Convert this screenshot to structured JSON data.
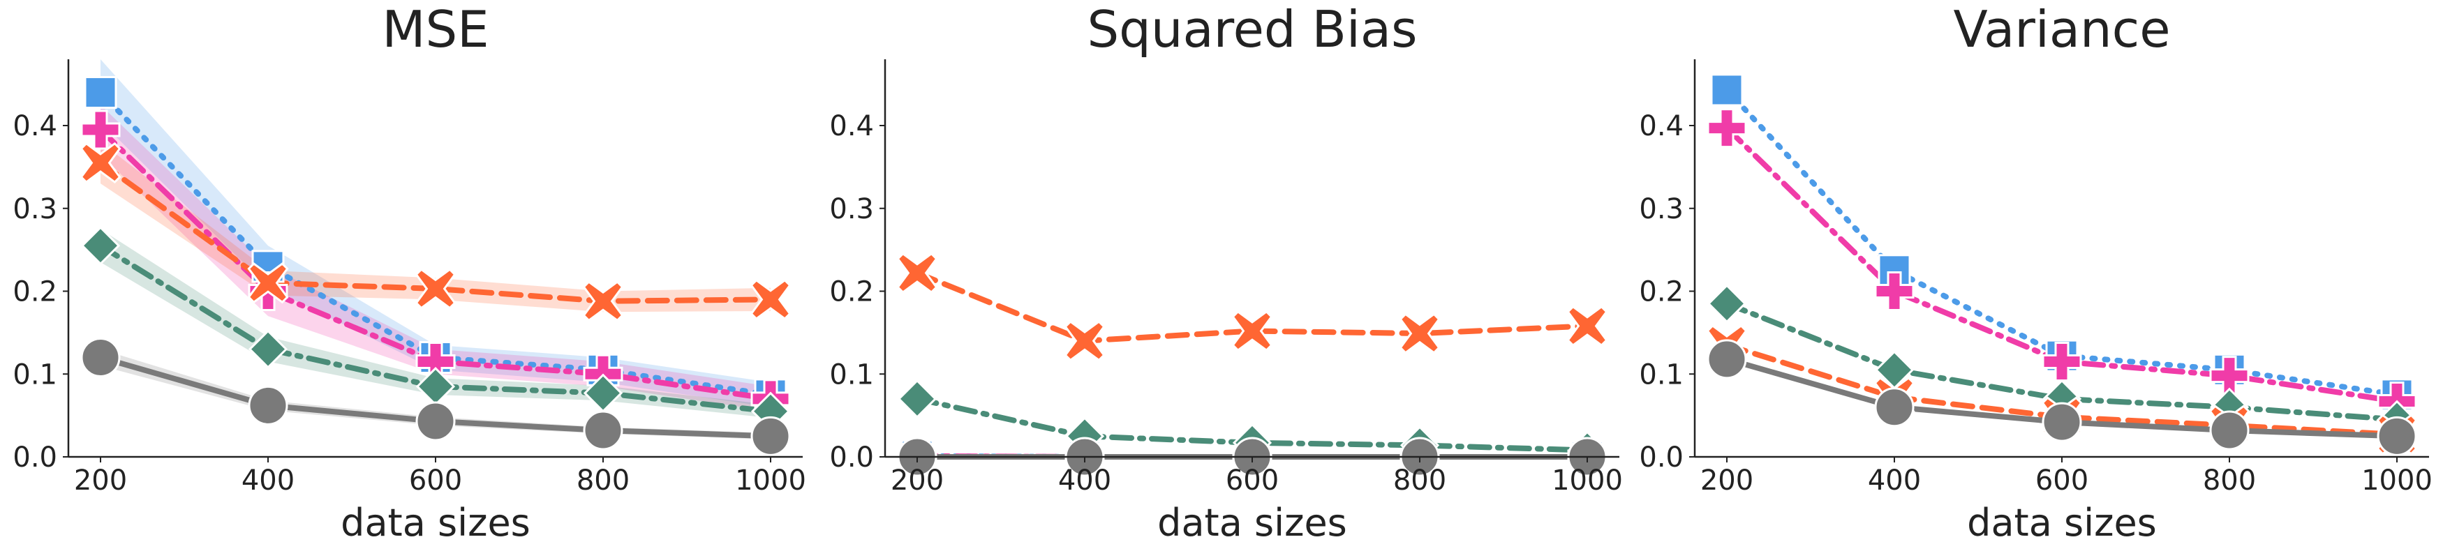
{
  "chart_data": [
    {
      "type": "line",
      "title": "MSE",
      "xlabel": "data sizes",
      "ylabel": "",
      "x": [
        200,
        400,
        600,
        800,
        1000
      ],
      "xticks": [
        "200",
        "400",
        "600",
        "800",
        "1000"
      ],
      "yticks": [
        "0.0",
        "0.1",
        "0.2",
        "0.3",
        "0.4"
      ],
      "ylim": [
        0,
        0.48
      ],
      "grid": false,
      "series": [
        {
          "color": "#4C9BE8",
          "marker": "square",
          "dash": "dotted",
          "values": [
            0.44,
            0.23,
            0.12,
            0.105,
            0.075
          ],
          "band": [
            [
              0.405,
              0.48
            ],
            [
              0.205,
              0.255
            ],
            [
              0.105,
              0.135
            ],
            [
              0.09,
              0.12
            ],
            [
              0.06,
              0.09
            ]
          ]
        },
        {
          "color": "#F03CA8",
          "marker": "plus",
          "dash": "dashdot",
          "values": [
            0.395,
            0.2,
            0.115,
            0.1,
            0.07
          ],
          "band": [
            [
              0.365,
              0.425
            ],
            [
              0.17,
              0.23
            ],
            [
              0.1,
              0.13
            ],
            [
              0.085,
              0.115
            ],
            [
              0.055,
              0.085
            ]
          ]
        },
        {
          "color": "#FF6633",
          "marker": "x",
          "dash": "dashed",
          "values": [
            0.355,
            0.21,
            0.203,
            0.188,
            0.19
          ],
          "band": [
            [
              0.33,
              0.38
            ],
            [
              0.195,
              0.225
            ],
            [
              0.19,
              0.216
            ],
            [
              0.175,
              0.2
            ],
            [
              0.176,
              0.204
            ]
          ]
        },
        {
          "color": "#4A8C78",
          "marker": "diamond",
          "dash": "dashdot",
          "values": [
            0.255,
            0.13,
            0.085,
            0.077,
            0.055
          ],
          "band": [
            [
              0.235,
              0.275
            ],
            [
              0.115,
              0.145
            ],
            [
              0.075,
              0.095
            ],
            [
              0.068,
              0.086
            ],
            [
              0.047,
              0.063
            ]
          ]
        },
        {
          "color": "#7A7A7A",
          "marker": "circle",
          "dash": "solid",
          "values": [
            0.12,
            0.062,
            0.043,
            0.032,
            0.025
          ],
          "band": [
            [
              0.11,
              0.13
            ],
            [
              0.056,
              0.068
            ],
            [
              0.038,
              0.048
            ],
            [
              0.028,
              0.036
            ],
            [
              0.021,
              0.029
            ]
          ]
        }
      ]
    },
    {
      "type": "line",
      "title": "Squared Bias",
      "xlabel": "data sizes",
      "ylabel": "",
      "x": [
        200,
        400,
        600,
        800,
        1000
      ],
      "xticks": [
        "200",
        "400",
        "600",
        "800",
        "1000"
      ],
      "yticks": [
        "0.0",
        "0.1",
        "0.2",
        "0.3",
        "0.4"
      ],
      "ylim": [
        0,
        0.48
      ],
      "grid": false,
      "series": [
        {
          "color": "#4C9BE8",
          "marker": "square",
          "dash": "dotted",
          "values": [
            0.001,
            0.0,
            0.0,
            0.0,
            0.0
          ]
        },
        {
          "color": "#F03CA8",
          "marker": "plus",
          "dash": "dashdot",
          "values": [
            0.001,
            0.0,
            0.0,
            0.0,
            0.0
          ]
        },
        {
          "color": "#FF6633",
          "marker": "x",
          "dash": "dashed",
          "values": [
            0.222,
            0.14,
            0.152,
            0.149,
            0.158
          ]
        },
        {
          "color": "#4A8C78",
          "marker": "diamond",
          "dash": "dashdot",
          "values": [
            0.07,
            0.025,
            0.017,
            0.014,
            0.008
          ]
        },
        {
          "color": "#7A7A7A",
          "marker": "circle",
          "dash": "solid",
          "values": [
            0.0,
            0.0,
            0.0,
            0.0,
            0.0
          ]
        }
      ]
    },
    {
      "type": "line",
      "title": "Variance",
      "xlabel": "data sizes",
      "ylabel": "",
      "x": [
        200,
        400,
        600,
        800,
        1000
      ],
      "xticks": [
        "200",
        "400",
        "600",
        "800",
        "1000"
      ],
      "yticks": [
        "0.0",
        "0.1",
        "0.2",
        "0.3",
        "0.4"
      ],
      "ylim": [
        0,
        0.48
      ],
      "grid": false,
      "series": [
        {
          "color": "#4C9BE8",
          "marker": "square",
          "dash": "dotted",
          "values": [
            0.443,
            0.225,
            0.122,
            0.105,
            0.075
          ]
        },
        {
          "color": "#F03CA8",
          "marker": "plus",
          "dash": "dashdot",
          "values": [
            0.397,
            0.2,
            0.115,
            0.098,
            0.067
          ]
        },
        {
          "color": "#4A8C78",
          "marker": "diamond",
          "dash": "dashdot",
          "values": [
            0.185,
            0.105,
            0.07,
            0.06,
            0.045
          ]
        },
        {
          "color": "#FF6633",
          "marker": "x",
          "dash": "dashed",
          "values": [
            0.135,
            0.072,
            0.048,
            0.038,
            0.027
          ]
        },
        {
          "color": "#7A7A7A",
          "marker": "circle",
          "dash": "solid",
          "values": [
            0.118,
            0.06,
            0.042,
            0.032,
            0.025
          ]
        }
      ]
    }
  ]
}
